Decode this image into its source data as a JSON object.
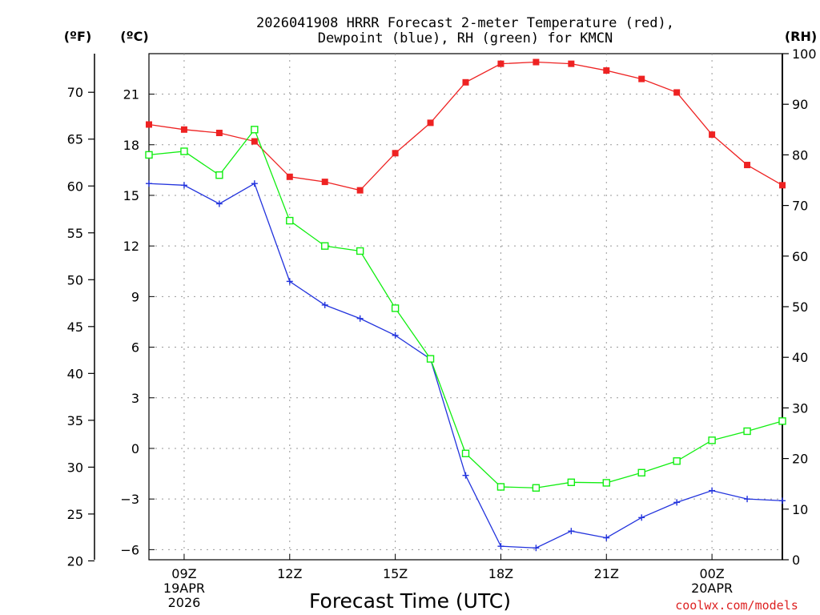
{
  "chart_data": {
    "type": "line",
    "title_line1": "2026041908 HRRR Forecast 2-meter Temperature (red),",
    "title_line2": "Dewpoint (blue), RH (green) for KMCN",
    "left_outer_unit": "(ºF)",
    "left_inner_unit": "(ºC)",
    "right_unit": "(RH)",
    "xlabel": "Forecast Time (UTC)",
    "credit": "coolwx.com/models",
    "x_hours": [
      8,
      9,
      10,
      11,
      12,
      13,
      14,
      15,
      16,
      17,
      18,
      19,
      20,
      21,
      22,
      23,
      24,
      25,
      26
    ],
    "xlim": [
      8,
      26
    ],
    "ylim_c": [
      -6.6,
      23.4
    ],
    "ylim_rh": [
      0,
      100
    ],
    "f_ticks": [
      "20",
      "25",
      "30",
      "35",
      "40",
      "45",
      "50",
      "55",
      "60",
      "65",
      "70"
    ],
    "c_ticks": [
      "-6",
      "-3",
      "0",
      "3",
      "6",
      "9",
      "12",
      "15",
      "18",
      "21"
    ],
    "rh_ticks": [
      "0",
      "10",
      "20",
      "30",
      "40",
      "50",
      "60",
      "70",
      "80",
      "90",
      "100"
    ],
    "x_ticks": [
      {
        "hour": 9,
        "lines": [
          "09Z",
          "19APR",
          "2026"
        ]
      },
      {
        "hour": 12,
        "lines": [
          "12Z"
        ]
      },
      {
        "hour": 15,
        "lines": [
          "15Z"
        ]
      },
      {
        "hour": 18,
        "lines": [
          "18Z"
        ]
      },
      {
        "hour": 21,
        "lines": [
          "21Z"
        ]
      },
      {
        "hour": 24,
        "lines": [
          "00Z",
          "20APR"
        ]
      }
    ],
    "series": [
      {
        "name": "Temperature",
        "axis": "c",
        "color": "#ee2222",
        "marker": "filled-square",
        "values": [
          19.2,
          18.9,
          18.7,
          18.2,
          16.1,
          15.8,
          15.3,
          17.5,
          19.3,
          21.7,
          22.8,
          22.9,
          22.8,
          22.4,
          21.9,
          21.1,
          18.6,
          16.8,
          15.6
        ]
      },
      {
        "name": "Dewpoint",
        "axis": "c",
        "color": "#2233dd",
        "marker": "plus",
        "values": [
          15.7,
          15.6,
          14.5,
          15.7,
          9.9,
          8.5,
          7.7,
          6.7,
          5.3,
          -1.6,
          -5.8,
          -5.9,
          -4.9,
          -5.3,
          -4.1,
          -3.2,
          -2.5,
          -3.0,
          -3.1
        ]
      },
      {
        "name": "RH",
        "axis": "rh",
        "color": "#11ee11",
        "marker": "open-square",
        "values": [
          80,
          80.7,
          76,
          85,
          67,
          62,
          61,
          49.7,
          39.7,
          21,
          14.4,
          14.2,
          15.3,
          15.2,
          17.2,
          19.5,
          23.6,
          25.4,
          27.4
        ]
      }
    ]
  }
}
